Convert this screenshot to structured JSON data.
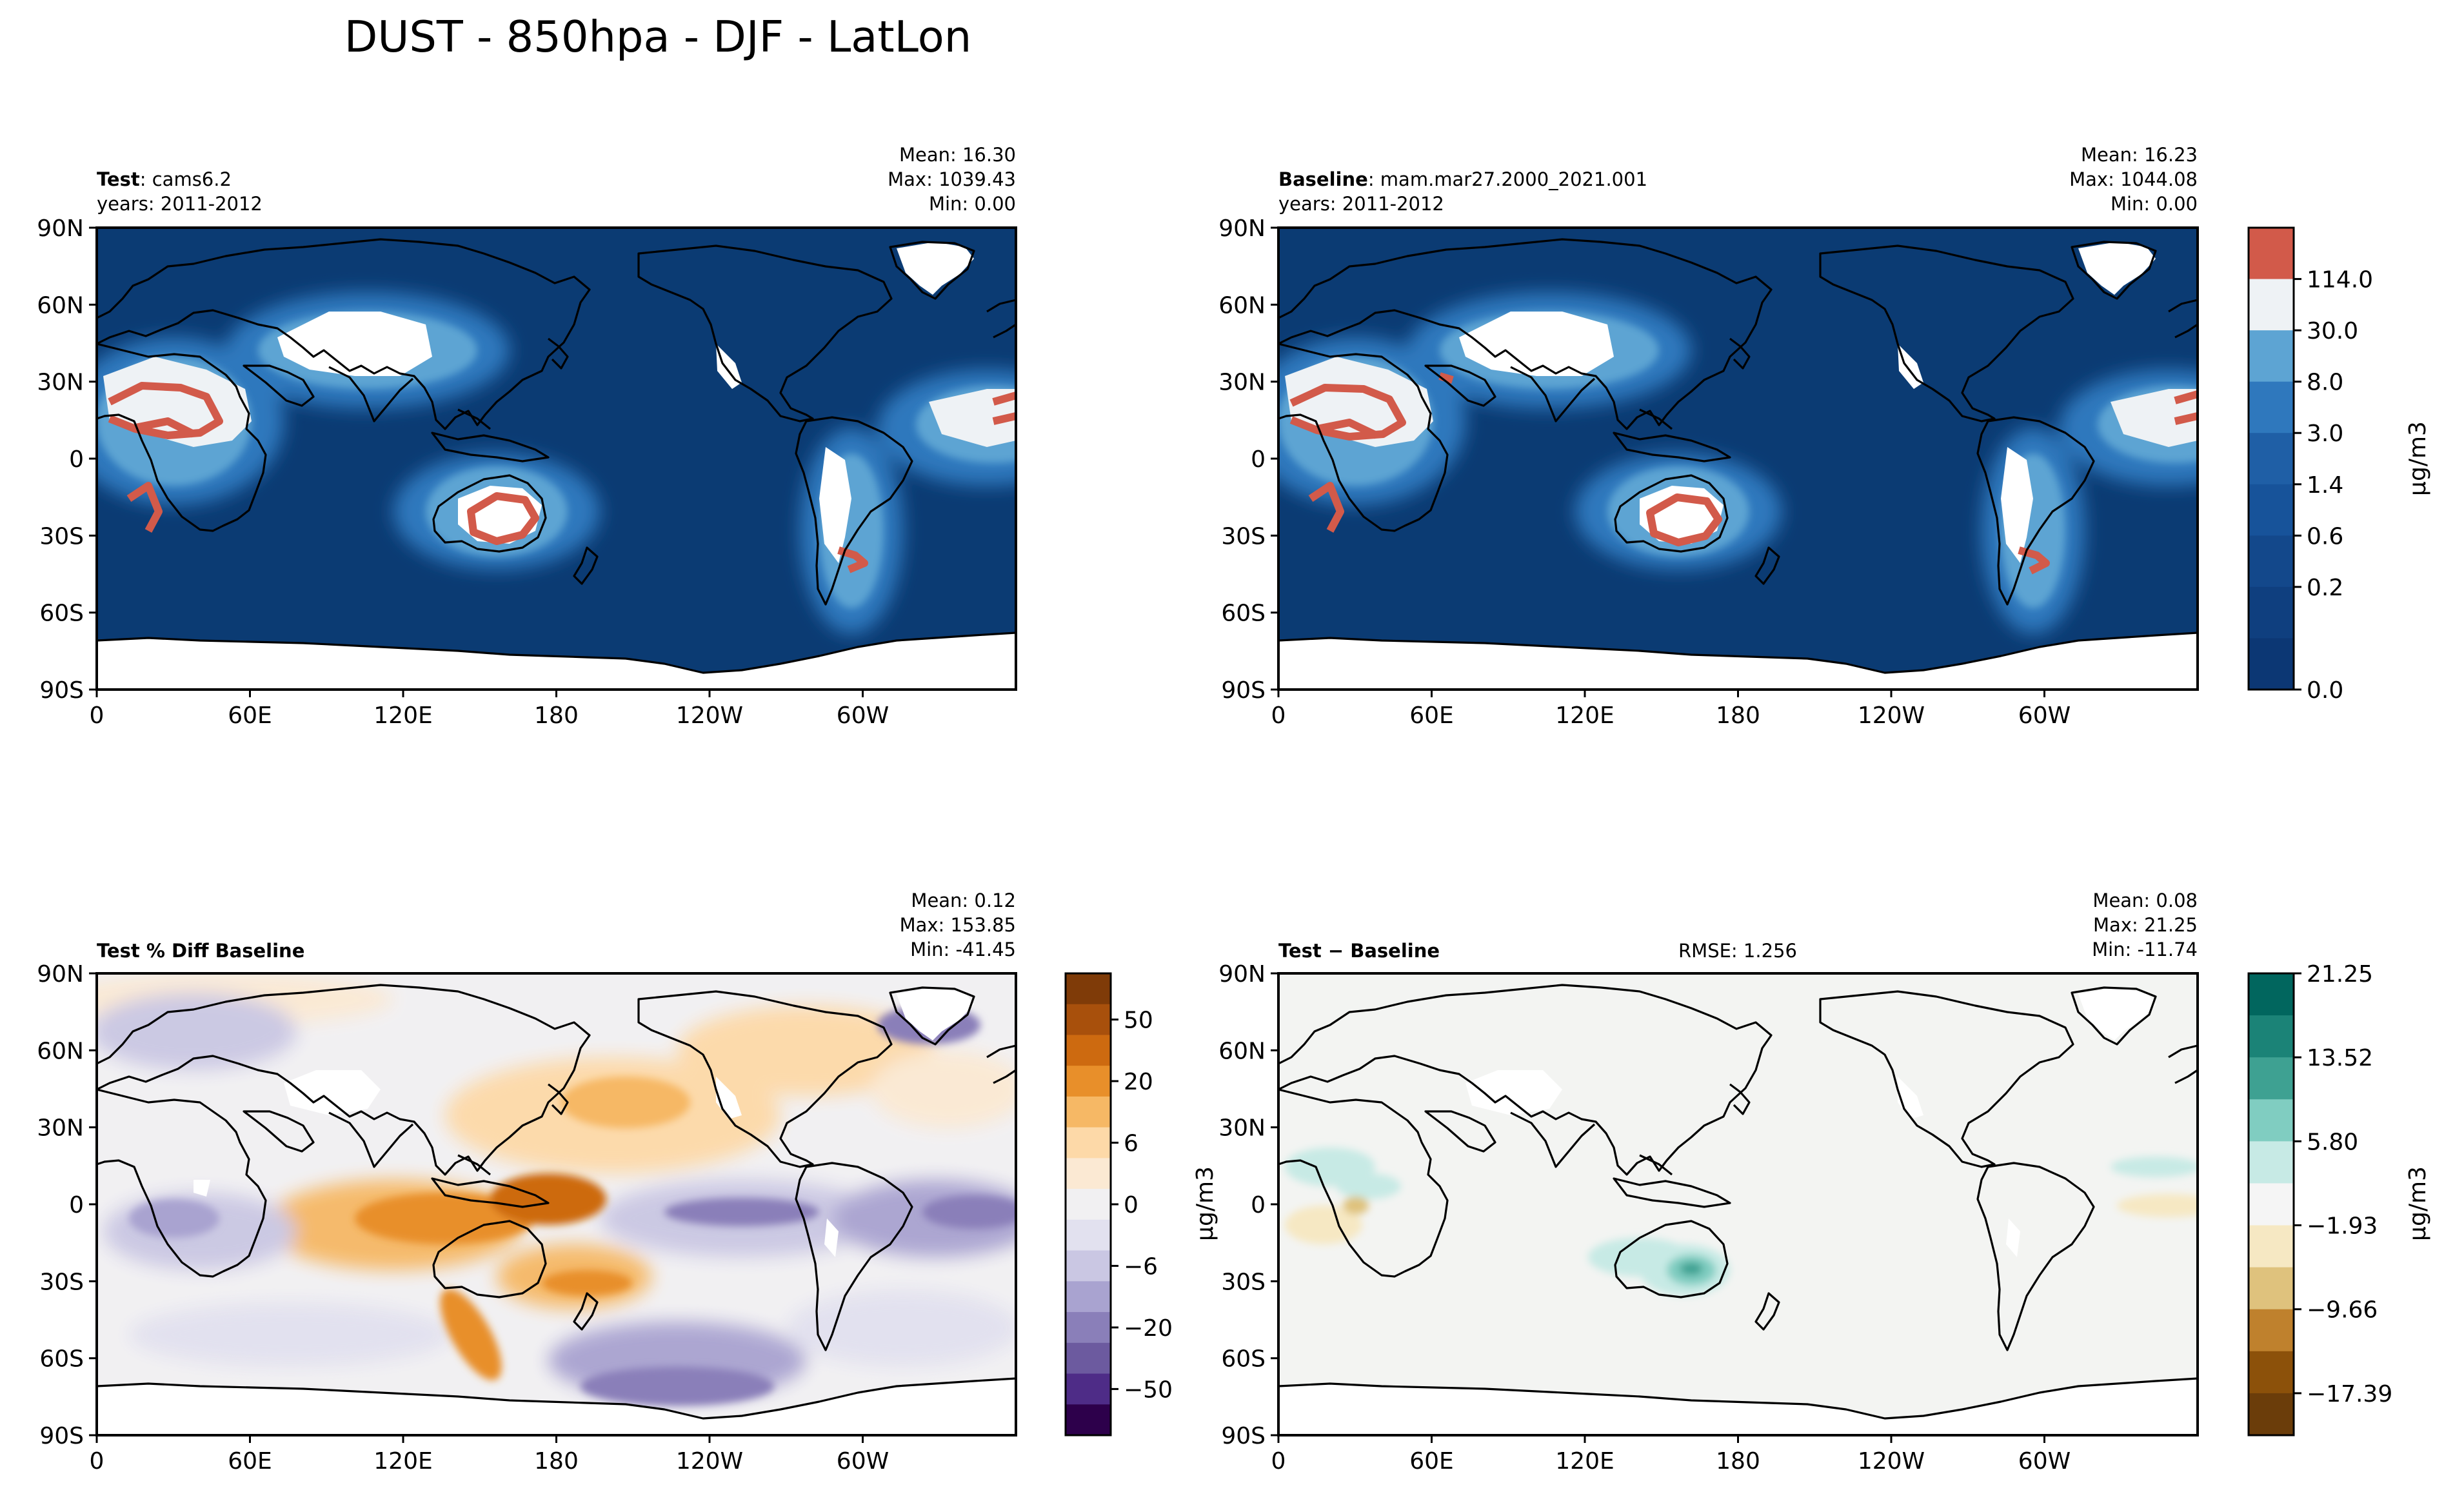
{
  "figure": {
    "title": "DUST - 850hpa - DJF - LatLon"
  },
  "colors": {
    "ocean_test": "#0b3b73",
    "ocean_mid": "#1a5aa0",
    "ocean_light": "#3b80c2",
    "dust_high": "#d85a4b",
    "white": "#ffffff",
    "diff_neutral": "#f3f4f2",
    "coast": "#000000"
  },
  "axes": {
    "lat_ticks": [
      "90N",
      "60N",
      "30N",
      "0",
      "30S",
      "60S",
      "90S"
    ],
    "lon_ticks": [
      "0",
      "60E",
      "120E",
      "180",
      "120W",
      "60W"
    ]
  },
  "chart_data": [
    {
      "type": "heatmap",
      "id": "test",
      "title_bold": "Test",
      "title_rest": ": cams6.2",
      "years": "years: 2011-2012",
      "stats": {
        "mean": "Mean: 16.30",
        "max": "Max: 1039.43",
        "min": "Min:  0.00"
      }
    },
    {
      "type": "heatmap",
      "id": "baseline",
      "title_bold": "Baseline",
      "title_rest": ": mam.mar27.2000_2021.001",
      "years": "years: 2011-2012",
      "stats": {
        "mean": "Mean: 16.23",
        "max": "Max: 1044.08",
        "min": "Min:  0.00"
      },
      "colorbar": {
        "label": "μg/m3",
        "ticks": [
          "114.0",
          "30.0",
          "8.0",
          "3.0",
          "1.4",
          "0.6",
          "0.2",
          "0.0"
        ],
        "colors": [
          "#d25a4a",
          "#eef2f5",
          "#5da4d3",
          "#2f78bd",
          "#1f5fa6",
          "#17539a",
          "#13488b",
          "#0f3f7f",
          "#0c3774"
        ]
      }
    },
    {
      "type": "heatmap",
      "id": "pctdiff",
      "title_bold": "Test % Diff Baseline",
      "stats": {
        "mean": "Mean:  0.12",
        "max": "Max: 153.85",
        "min": "Min: -41.45"
      },
      "colorbar": {
        "label": "",
        "ticks": [
          "50",
          "20",
          "6",
          "0",
          "−6",
          "−20",
          "−50"
        ],
        "colors": [
          "#7f3b08",
          "#a8500c",
          "#cd6a10",
          "#e88f2a",
          "#f6b865",
          "#fdd9a8",
          "#fbe9d3",
          "#f1f0f2",
          "#e2e1ef",
          "#cac7e3",
          "#a9a3d0",
          "#8a7fb9",
          "#6c5a9f",
          "#4e2c87",
          "#2d004b"
        ]
      }
    },
    {
      "type": "heatmap",
      "id": "diff",
      "title_bold": "Test − Baseline",
      "rmse": "RMSE: 1.256",
      "stats": {
        "mean": "Mean:  0.08",
        "max": "Max: 21.25",
        "min": "Min: -11.74"
      },
      "colorbar": {
        "label": "μg/m3",
        "ticks": [
          "21.25",
          "13.52",
          "5.80",
          "−1.93",
          "−9.66",
          "−17.39"
        ],
        "colors": [
          "#01665e",
          "#1b8377",
          "#3ea192",
          "#80cdc1",
          "#c7eae5",
          "#f5f5f5",
          "#f6e8c3",
          "#dfc27d",
          "#bf812d",
          "#8c510a",
          "#6b3d0a"
        ]
      }
    }
  ],
  "side_label": "μg/m3"
}
